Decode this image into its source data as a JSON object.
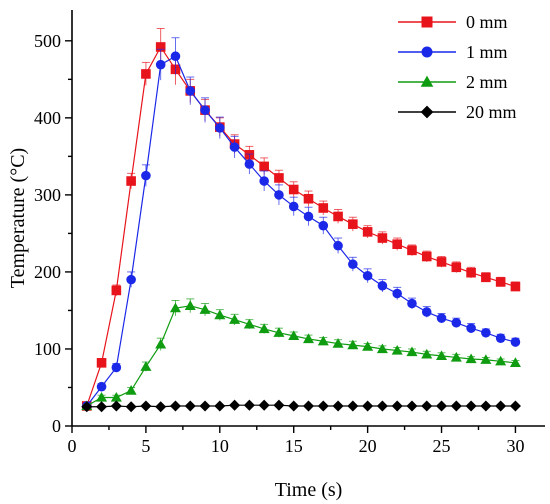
{
  "chart_data": {
    "type": "line",
    "xlabel": "Time (s)",
    "ylabel": "Temperature (°C)",
    "xlim": [
      0,
      32
    ],
    "ylim": [
      0,
      540
    ],
    "xticks": [
      0,
      5,
      10,
      15,
      20,
      25,
      30
    ],
    "yticks": [
      0,
      100,
      200,
      300,
      400,
      500
    ],
    "grid": false,
    "legend_position": "top-right",
    "x": [
      1,
      2,
      3,
      4,
      5,
      6,
      7,
      8,
      9,
      10,
      11,
      12,
      13,
      14,
      15,
      16,
      17,
      18,
      19,
      20,
      21,
      22,
      23,
      24,
      25,
      26,
      27,
      28,
      29,
      30
    ],
    "series": [
      {
        "name": "0 mm",
        "color": "#e8141c",
        "marker": "square",
        "values": [
          26,
          82,
          176,
          318,
          457,
          492,
          463,
          435,
          410,
          388,
          366,
          352,
          337,
          322,
          307,
          295,
          283,
          272,
          262,
          252,
          244,
          236,
          228,
          220,
          213,
          206,
          199,
          193,
          187,
          181
        ],
        "errors": [
          3,
          5,
          7,
          10,
          15,
          24,
          20,
          15,
          14,
          12,
          12,
          11,
          11,
          10,
          10,
          10,
          9,
          9,
          9,
          8,
          8,
          8,
          7,
          7,
          7,
          7,
          7,
          6,
          6,
          6
        ]
      },
      {
        "name": "1 mm",
        "color": "#1c28e8",
        "marker": "circle",
        "values": [
          26,
          51,
          76,
          190,
          325,
          469,
          480,
          435,
          410,
          387,
          362,
          340,
          318,
          300,
          285,
          272,
          260,
          234,
          210,
          195,
          182,
          172,
          159,
          148,
          140,
          134,
          127,
          121,
          114,
          109
        ],
        "errors": [
          3,
          4,
          5,
          10,
          14,
          20,
          24,
          18,
          16,
          14,
          14,
          13,
          13,
          13,
          12,
          12,
          11,
          10,
          9,
          9,
          8,
          8,
          7,
          7,
          6,
          6,
          6,
          5,
          5,
          5
        ]
      },
      {
        "name": "2 mm",
        "color": "#109c10",
        "marker": "triangle",
        "values": [
          26,
          37,
          37,
          46,
          77,
          106,
          153,
          156,
          151,
          144,
          138,
          132,
          126,
          121,
          117,
          113,
          110,
          107,
          105,
          103,
          100,
          98,
          96,
          93,
          91,
          89,
          87,
          86,
          84,
          82
        ],
        "errors": [
          2,
          3,
          3,
          4,
          6,
          8,
          10,
          9,
          8,
          7,
          7,
          6,
          6,
          6,
          5,
          5,
          5,
          5,
          5,
          4,
          4,
          4,
          4,
          4,
          4,
          4,
          3,
          3,
          3,
          3
        ]
      },
      {
        "name": "20 mm",
        "color": "#000000",
        "marker": "diamond",
        "values": [
          25,
          25,
          26,
          25,
          26,
          25,
          26,
          26,
          26,
          26,
          27,
          27,
          27,
          27,
          26,
          26,
          26,
          26,
          26,
          26,
          26,
          26,
          26,
          26,
          26,
          26,
          26,
          26,
          26,
          26
        ],
        "errors": [
          1,
          1,
          1,
          1,
          1,
          1,
          1,
          1,
          1,
          1,
          1,
          1,
          1,
          1,
          1,
          1,
          1,
          1,
          1,
          1,
          1,
          1,
          1,
          1,
          1,
          1,
          1,
          1,
          1,
          1
        ]
      }
    ]
  }
}
